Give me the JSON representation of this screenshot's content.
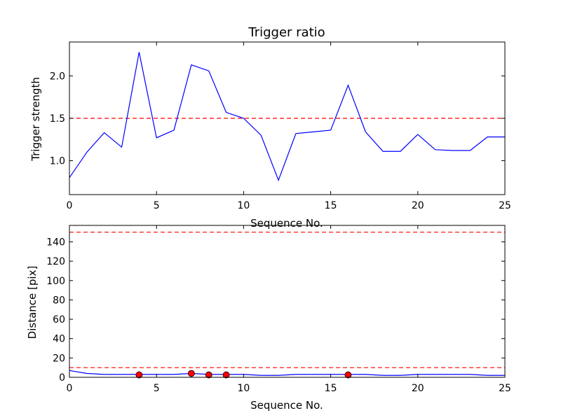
{
  "chart_data": [
    {
      "type": "line",
      "title": "Trigger ratio",
      "xlabel": "Sequence No.",
      "ylabel": "Trigger strength",
      "xlim": [
        0,
        25
      ],
      "ylim": [
        0.6,
        2.4
      ],
      "xticks": [
        0,
        5,
        10,
        15,
        20,
        25
      ],
      "yticks": [
        1.0,
        1.5,
        2.0
      ],
      "ytick_labels": [
        "1.0",
        "1.5",
        "2.0"
      ],
      "line_color": "#0000ff",
      "threshold": {
        "value": 1.5,
        "color": "#ff0000",
        "style": "dashed"
      },
      "x": [
        0,
        1,
        2,
        3,
        4,
        5,
        6,
        7,
        8,
        9,
        10,
        11,
        12,
        13,
        14,
        15,
        16,
        17,
        18,
        19,
        20,
        21,
        22,
        23,
        24,
        25
      ],
      "series": [
        {
          "values": [
            0.8,
            1.1,
            1.33,
            1.16,
            2.28,
            1.27,
            1.36,
            2.13,
            2.06,
            1.57,
            1.5,
            1.3,
            0.77,
            1.32,
            1.34,
            1.36,
            1.89,
            1.34,
            1.11,
            1.11,
            1.31,
            1.13,
            1.12,
            1.12,
            1.28,
            1.28
          ]
        }
      ]
    },
    {
      "type": "line",
      "title": "",
      "xlabel": "Sequence No.",
      "ylabel": "Distance [pix]",
      "xlim": [
        0,
        25
      ],
      "ylim": [
        0,
        157
      ],
      "xticks": [
        0,
        5,
        10,
        15,
        20,
        25
      ],
      "yticks": [
        0,
        20,
        40,
        60,
        80,
        100,
        120,
        140
      ],
      "ytick_labels": [
        "0",
        "20",
        "40",
        "60",
        "80",
        "100",
        "120",
        "140"
      ],
      "line_color": "#0000ff",
      "thresholds": [
        {
          "value": 150,
          "color": "#ff0000",
          "style": "dashed"
        },
        {
          "value": 10,
          "color": "#ff0000",
          "style": "dashed"
        }
      ],
      "x": [
        0,
        1,
        2,
        3,
        4,
        5,
        6,
        7,
        8,
        9,
        10,
        11,
        12,
        13,
        14,
        15,
        16,
        17,
        18,
        19,
        20,
        21,
        22,
        23,
        24,
        25
      ],
      "series": [
        {
          "values": [
            7,
            4,
            3,
            3,
            3,
            3,
            3,
            4,
            3,
            3,
            3,
            2,
            2,
            3,
            3,
            3,
            3,
            3,
            2,
            2,
            3,
            3,
            3,
            3,
            2,
            2
          ]
        }
      ],
      "markers": {
        "color": "#ff0000",
        "x": [
          4,
          7,
          8,
          9,
          16
        ],
        "y": [
          2.5,
          4,
          2.5,
          2.5,
          2.5
        ]
      }
    }
  ]
}
